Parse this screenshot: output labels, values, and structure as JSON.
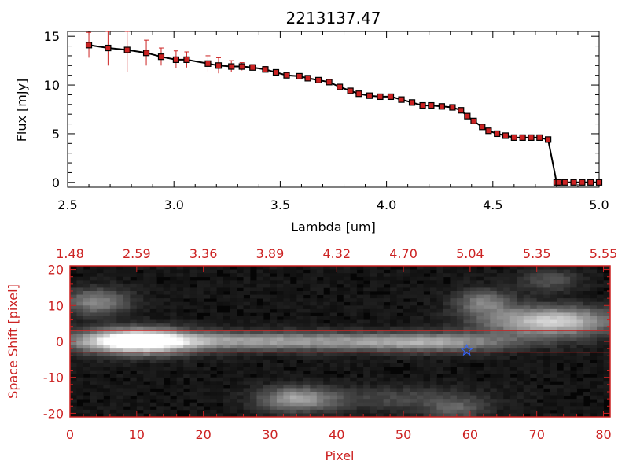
{
  "chart_data": [
    {
      "type": "line",
      "title": "2213137.47",
      "xlabel": "Lambda [um]",
      "ylabel": "Flux [mJy]",
      "xlim": [
        2.5,
        5.0
      ],
      "ylim": [
        -0.5,
        15.5
      ],
      "x_ticks": [
        {
          "value": 2.5,
          "label": "2.5"
        },
        {
          "value": 3.0,
          "label": "3.0"
        },
        {
          "value": 3.5,
          "label": "3.5"
        },
        {
          "value": 4.0,
          "label": "4.0"
        },
        {
          "value": 4.5,
          "label": "4.5"
        },
        {
          "value": 5.0,
          "label": "5.0"
        }
      ],
      "y_ticks": [
        {
          "value": 0,
          "label": "0"
        },
        {
          "value": 5,
          "label": "5"
        },
        {
          "value": 10,
          "label": "10"
        },
        {
          "value": 15,
          "label": "15"
        }
      ],
      "grid": false,
      "line_color": "#000000",
      "marker_color": "#cc2222",
      "errorbar_color": "#cc2222",
      "x": [
        2.6,
        2.69,
        2.78,
        2.87,
        2.94,
        3.01,
        3.06,
        3.16,
        3.21,
        3.27,
        3.32,
        3.37,
        3.43,
        3.48,
        3.53,
        3.59,
        3.63,
        3.68,
        3.73,
        3.78,
        3.83,
        3.87,
        3.92,
        3.97,
        4.02,
        4.07,
        4.12,
        4.17,
        4.21,
        4.26,
        4.31,
        4.35,
        4.38,
        4.41,
        4.45,
        4.48,
        4.52,
        4.56,
        4.6,
        4.64,
        4.68,
        4.72,
        4.76,
        4.8,
        4.81,
        4.84,
        4.88,
        4.92,
        4.96,
        5.0
      ],
      "y": [
        14.1,
        13.8,
        13.6,
        13.3,
        12.9,
        12.6,
        12.6,
        12.2,
        12.0,
        11.9,
        11.9,
        11.8,
        11.6,
        11.3,
        11.0,
        10.9,
        10.7,
        10.5,
        10.3,
        9.8,
        9.4,
        9.1,
        8.9,
        8.8,
        8.8,
        8.5,
        8.2,
        7.9,
        7.9,
        7.8,
        7.7,
        7.4,
        6.8,
        6.3,
        5.7,
        5.3,
        5.0,
        4.8,
        4.6,
        4.6,
        4.6,
        4.6,
        4.4,
        0.0,
        0.0,
        0.0,
        0.0,
        0.0,
        0.0,
        0.0
      ],
      "y_err": [
        1.3,
        1.8,
        2.3,
        1.3,
        0.9,
        0.9,
        0.8,
        0.8,
        0.8,
        0.6,
        0.4,
        0.3,
        0.3,
        0.2,
        0.2,
        0.2,
        0.2,
        0.2,
        0.2,
        0.2,
        0.2,
        0.2,
        0.2,
        0.2,
        0.2,
        0.2,
        0.2,
        0.2,
        0.2,
        0.2,
        0.2,
        0.2,
        0.2,
        0.2,
        0.2,
        0.2,
        0.2,
        0.2,
        0.2,
        0.2,
        0.2,
        0.2,
        0.2,
        0.1,
        0.1,
        0.1,
        0.1,
        0.1,
        0.1,
        0.1
      ]
    },
    {
      "type": "heatmap",
      "xlabel": "Pixel",
      "ylabel": "Space Shift [pixel]",
      "xlim": [
        0,
        81
      ],
      "ylim": [
        -21,
        21
      ],
      "axis_color": "#cc2222",
      "x_ticks": [
        {
          "value": 0,
          "label": "0"
        },
        {
          "value": 10,
          "label": "10"
        },
        {
          "value": 20,
          "label": "20"
        },
        {
          "value": 30,
          "label": "30"
        },
        {
          "value": 40,
          "label": "40"
        },
        {
          "value": 50,
          "label": "50"
        },
        {
          "value": 60,
          "label": "60"
        },
        {
          "value": 70,
          "label": "70"
        },
        {
          "value": 80,
          "label": "80"
        }
      ],
      "top_ticks": [
        {
          "value": 0,
          "label": "1.48"
        },
        {
          "value": 10,
          "label": "2.59"
        },
        {
          "value": 20,
          "label": "3.36"
        },
        {
          "value": 30,
          "label": "3.89"
        },
        {
          "value": 40,
          "label": "4.32"
        },
        {
          "value": 50,
          "label": "4.70"
        },
        {
          "value": 60,
          "label": "5.04"
        },
        {
          "value": 70,
          "label": "5.35"
        },
        {
          "value": 80,
          "label": "5.55"
        }
      ],
      "y_ticks": [
        {
          "value": 20,
          "label": "20"
        },
        {
          "value": 10,
          "label": "10"
        },
        {
          "value": 0,
          "label": "0"
        },
        {
          "value": -10,
          "label": "-10"
        },
        {
          "value": -20,
          "label": "-20"
        }
      ],
      "aperture_lines": [
        3,
        -3
      ],
      "aperture_color": "#cc2222",
      "marker": {
        "x": 59.5,
        "y": -2.5,
        "shape": "star",
        "color": "#3366ff"
      },
      "grid": false
    }
  ]
}
